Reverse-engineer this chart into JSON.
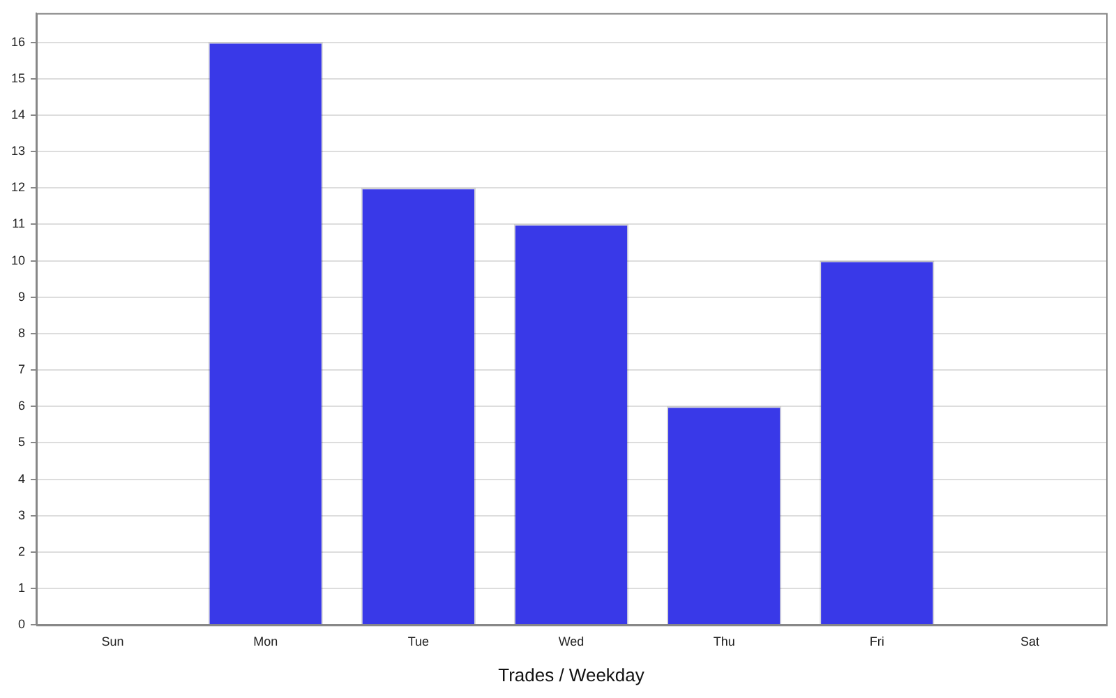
{
  "chart_data": {
    "type": "bar",
    "xlabel": "Trades / Weekday",
    "categories": [
      "Sun",
      "Mon",
      "Tue",
      "Wed",
      "Thu",
      "Fri",
      "Sat"
    ],
    "values": [
      0,
      16,
      12,
      11,
      6,
      10,
      0
    ],
    "color": "#3939e8",
    "ylim": [
      0,
      16.8
    ],
    "yticks": [
      0,
      1,
      2,
      3,
      4,
      5,
      6,
      7,
      8,
      9,
      10,
      11,
      12,
      13,
      14,
      15,
      16
    ],
    "grid": "y",
    "legend": false
  }
}
